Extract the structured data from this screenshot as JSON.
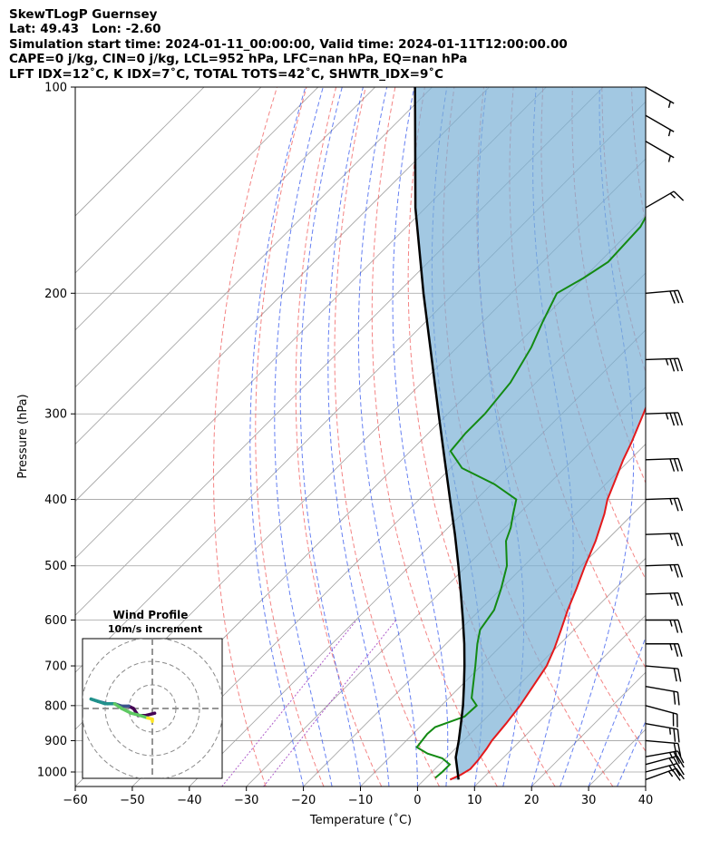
{
  "header": {
    "line1": "SkewTLogP Guernsey",
    "line2": "Lat: 49.43   Lon: -2.60",
    "line3": "Simulation start time: 2024-01-11_00:00:00, Valid time: 2024-01-11T12:00:00.00",
    "line4": "CAPE=0 j/kg, CIN=0 j/kg, LCL=952 hPa, LFC=nan hPa, EQ=nan hPa",
    "line5": "LFT IDX=12˚C, K IDX=7˚C, TOTAL TOTS=42˚C, SHWTR_IDX=9˚C"
  },
  "chart_data": [
    {
      "type": "line",
      "chart": "skew-t log-p",
      "xlabel": "Temperature (˚C)",
      "ylabel": "Pressure (hPa)",
      "xlim": [
        -60,
        40
      ],
      "ylim": [
        1050,
        100
      ],
      "y_scale": "log",
      "xticks": [
        -60,
        -50,
        -40,
        -30,
        -20,
        -10,
        0,
        10,
        20,
        30,
        40
      ],
      "yticks": [
        100,
        200,
        300,
        400,
        500,
        600,
        700,
        800,
        900,
        1000
      ],
      "grid": true,
      "colors": {
        "temperature": "#e41a1c",
        "dewpoint": "#138a13",
        "parcel": "#000000",
        "cape_fill": "#7ab0d6",
        "dry_adiabats": "#f05050",
        "moist_adiabats": "#3355ee",
        "mixing_ratio": "#a040c0",
        "isotherms": "#a0a0a0"
      },
      "series": [
        {
          "role": "temperature",
          "points": [
            [
              1026,
              4.5
            ],
            [
              1010,
              5.5
            ],
            [
              990,
              6.2
            ],
            [
              960,
              6.0
            ],
            [
              925,
              5.5
            ],
            [
              900,
              5.0
            ],
            [
              850,
              4.5
            ],
            [
              800,
              3.8
            ],
            [
              750,
              2.7
            ],
            [
              700,
              1.5
            ],
            [
              660,
              -0.2
            ],
            [
              620,
              -2.3
            ],
            [
              580,
              -4.6
            ],
            [
              540,
              -6.8
            ],
            [
              500,
              -9.3
            ],
            [
              460,
              -11.8
            ],
            [
              420,
              -15.0
            ],
            [
              400,
              -17.0
            ],
            [
              380,
              -18.6
            ],
            [
              350,
              -21.2
            ],
            [
              330,
              -22.8
            ],
            [
              300,
              -25.7
            ],
            [
              270,
              -29.0
            ],
            [
              250,
              -31.0
            ],
            [
              230,
              -30.6
            ],
            [
              210,
              -30.6
            ],
            [
              200,
              -30.8
            ],
            [
              180,
              -29.4
            ],
            [
              160,
              -28.5
            ],
            [
              150,
              -28.6
            ],
            [
              140,
              -27.8
            ],
            [
              130,
              -29.0
            ],
            [
              120,
              -31.4
            ],
            [
              110,
              -33.6
            ],
            [
              105,
              -34.8
            ],
            [
              100,
              -36.0
            ]
          ]
        },
        {
          "role": "dewpoint",
          "points": [
            [
              1020,
              1.6
            ],
            [
              1000,
              1.8
            ],
            [
              975,
              1.8
            ],
            [
              955,
              -0.6
            ],
            [
              940,
              -4.0
            ],
            [
              920,
              -7.0
            ],
            [
              880,
              -7.5
            ],
            [
              860,
              -7.3
            ],
            [
              830,
              -4.0
            ],
            [
              800,
              -3.8
            ],
            [
              780,
              -6.0
            ],
            [
              700,
              -11.0
            ],
            [
              650,
              -14.5
            ],
            [
              620,
              -16.5
            ],
            [
              580,
              -17.5
            ],
            [
              540,
              -20.0
            ],
            [
              500,
              -23.0
            ],
            [
              460,
              -27.5
            ],
            [
              440,
              -29.0
            ],
            [
              420,
              -31.0
            ],
            [
              400,
              -33.0
            ],
            [
              380,
              -39.5
            ],
            [
              360,
              -48.0
            ],
            [
              340,
              -53.0
            ],
            [
              320,
              -53.5
            ],
            [
              300,
              -53.5
            ],
            [
              270,
              -54.5
            ],
            [
              240,
              -57.0
            ],
            [
              220,
              -59.5
            ],
            [
              200,
              -62.0
            ],
            [
              190,
              -60.0
            ],
            [
              180,
              -58.5
            ],
            [
              160,
              -59.0
            ],
            [
              150,
              -60.5
            ],
            [
              120,
              -58.0
            ],
            [
              100,
              -56.0
            ]
          ]
        },
        {
          "role": "parcel",
          "points": [
            [
              1026,
              6.0
            ],
            [
              952,
              1.6
            ],
            [
              900,
              -0.8
            ],
            [
              850,
              -3.4
            ],
            [
              800,
              -6.2
            ],
            [
              750,
              -9.4
            ],
            [
              700,
              -12.9
            ],
            [
              650,
              -16.8
            ],
            [
              600,
              -21.2
            ],
            [
              550,
              -26.1
            ],
            [
              500,
              -31.5
            ],
            [
              450,
              -37.6
            ],
            [
              400,
              -44.6
            ],
            [
              350,
              -52.5
            ],
            [
              300,
              -61.6
            ],
            [
              250,
              -72.3
            ],
            [
              200,
              -85.4
            ],
            [
              150,
              -101.8
            ],
            [
              100,
              -123.0
            ]
          ]
        }
      ],
      "wind_barbs": [
        {
          "p": 1026,
          "speed_kt": 25,
          "dir": 250
        },
        {
          "p": 1000,
          "speed_kt": 25,
          "dir": 255
        },
        {
          "p": 975,
          "speed_kt": 25,
          "dir": 255
        },
        {
          "p": 950,
          "speed_kt": 25,
          "dir": 260
        },
        {
          "p": 900,
          "speed_kt": 20,
          "dir": 275
        },
        {
          "p": 850,
          "speed_kt": 25,
          "dir": 280
        },
        {
          "p": 800,
          "speed_kt": 20,
          "dir": 285
        },
        {
          "p": 750,
          "speed_kt": 20,
          "dir": 280
        },
        {
          "p": 700,
          "speed_kt": 20,
          "dir": 275
        },
        {
          "p": 650,
          "speed_kt": 25,
          "dir": 270
        },
        {
          "p": 600,
          "speed_kt": 25,
          "dir": 270
        },
        {
          "p": 550,
          "speed_kt": 25,
          "dir": 268
        },
        {
          "p": 500,
          "speed_kt": 25,
          "dir": 268
        },
        {
          "p": 450,
          "speed_kt": 25,
          "dir": 268
        },
        {
          "p": 400,
          "speed_kt": 25,
          "dir": 268
        },
        {
          "p": 350,
          "speed_kt": 30,
          "dir": 268
        },
        {
          "p": 300,
          "speed_kt": 35,
          "dir": 268
        },
        {
          "p": 250,
          "speed_kt": 35,
          "dir": 268
        },
        {
          "p": 200,
          "speed_kt": 30,
          "dir": 265
        },
        {
          "p": 150,
          "speed_kt": 15,
          "dir": 240
        },
        {
          "p": 120,
          "speed_kt": 5,
          "dir": 300
        },
        {
          "p": 110,
          "speed_kt": 5,
          "dir": 300
        },
        {
          "p": 100,
          "speed_kt": 5,
          "dir": 300
        }
      ]
    },
    {
      "type": "line",
      "chart": "hodograph",
      "title": "Wind Profile",
      "subtitle": "10m/s increment",
      "rings_ms": [
        10,
        20,
        30
      ],
      "colormap": [
        "#440154",
        "#3b528b",
        "#21918c",
        "#5ec962",
        "#fde725"
      ],
      "points": [
        [
          1,
          -2
        ],
        [
          -3,
          -3
        ],
        [
          -6,
          -3
        ],
        [
          -8,
          0
        ],
        [
          -10,
          1
        ],
        [
          -13,
          1
        ],
        [
          -16,
          2
        ],
        [
          -19,
          2
        ],
        [
          -23,
          3
        ],
        [
          -26,
          4
        ],
        [
          -23,
          3
        ],
        [
          -20,
          2
        ],
        [
          -16,
          2
        ],
        [
          -13,
          0
        ],
        [
          -9,
          -2
        ],
        [
          -5,
          -3
        ],
        [
          -2,
          -4
        ],
        [
          0,
          -4.5
        ],
        [
          0,
          -5
        ],
        [
          0,
          -5.5
        ]
      ]
    }
  ]
}
